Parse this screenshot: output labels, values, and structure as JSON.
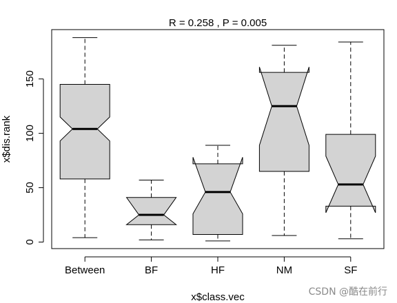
{
  "chart_data": {
    "type": "box",
    "title": "R =  0.258 ,  P =  0.005",
    "xlabel": "x$class.vec",
    "ylabel": "x$dis.rank",
    "ylim": [
      -5,
      195
    ],
    "y_ticks": [
      0,
      50,
      100,
      150
    ],
    "notched": true,
    "box_color": "#d3d3d3",
    "categories": [
      "Between",
      "BF",
      "HF",
      "NM",
      "SF"
    ],
    "boxes": [
      {
        "category": "Between",
        "min": 4,
        "q1": 58,
        "median": 104,
        "q3": 145,
        "max": 188,
        "notch_low": 93,
        "notch_high": 115
      },
      {
        "category": "BF",
        "min": 2,
        "q1": 16,
        "median": 25,
        "q3": 41,
        "max": 57,
        "notch_low": 16,
        "notch_high": 41
      },
      {
        "category": "HF",
        "min": 1,
        "q1": 7,
        "median": 46,
        "q3": 72,
        "max": 89,
        "notch_low": 26,
        "notch_high": 78
      },
      {
        "category": "NM",
        "min": 6,
        "q1": 65,
        "median": 125,
        "q3": 156,
        "max": 181,
        "notch_low": 89,
        "notch_high": 161
      },
      {
        "category": "SF",
        "min": 3,
        "q1": 33,
        "median": 53,
        "q3": 99,
        "max": 184,
        "notch_low": 27,
        "notch_high": 79
      }
    ]
  },
  "watermark": "CSDN @酷在前行"
}
